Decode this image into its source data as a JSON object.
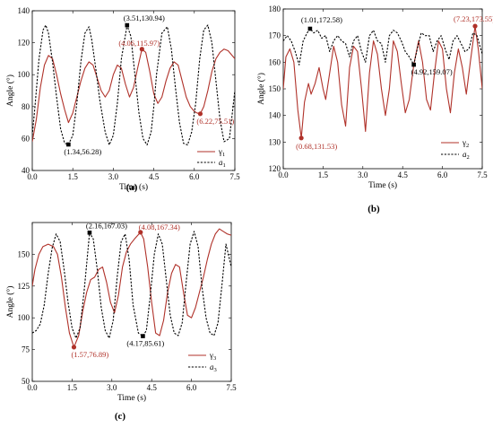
{
  "colors": {
    "gamma": "#b0322a",
    "a": "#000000",
    "annot_gamma": "#b0322a",
    "annot_a": "#000000"
  },
  "chart_data": [
    {
      "type": "line",
      "caption": "(a)",
      "xlabel": "Time (s)",
      "ylabel": "Angle (°)",
      "xlim": [
        0,
        7.5
      ],
      "ylim": [
        40,
        140
      ],
      "xticks": [
        "0.0",
        "1.5",
        "3.0",
        "4.5",
        "6.0",
        "7.5"
      ],
      "yticks": [
        "40",
        "60",
        "80",
        "100",
        "120",
        "140"
      ],
      "legend_position": "bottom-right",
      "series": [
        {
          "name": "γ1",
          "name_main": "γ",
          "name_sub": "1",
          "italic": false,
          "style": "solid",
          "x": [
            0,
            0.15,
            0.3,
            0.45,
            0.6,
            0.75,
            0.9,
            1.05,
            1.2,
            1.34,
            1.5,
            1.65,
            1.8,
            1.95,
            2.1,
            2.25,
            2.4,
            2.55,
            2.7,
            2.85,
            3.0,
            3.15,
            3.3,
            3.45,
            3.6,
            3.75,
            3.9,
            4.06,
            4.2,
            4.35,
            4.5,
            4.65,
            4.8,
            4.95,
            5.1,
            5.25,
            5.4,
            5.55,
            5.7,
            5.85,
            6.0,
            6.1,
            6.22,
            6.35,
            6.5,
            6.65,
            6.8,
            6.95,
            7.1,
            7.25,
            7.4,
            7.5
          ],
          "y": [
            58,
            72,
            92,
            106,
            112,
            110,
            100,
            88,
            78,
            70,
            76,
            86,
            96,
            104,
            108,
            106,
            98,
            90,
            86,
            90,
            100,
            106,
            104,
            94,
            86,
            92,
            104,
            115.97,
            114,
            102,
            88,
            82,
            86,
            96,
            104,
            108,
            106,
            96,
            86,
            80,
            77,
            76,
            75.51,
            80,
            90,
            102,
            110,
            114,
            116,
            115,
            112,
            110
          ]
        },
        {
          "name": "a1",
          "name_main": "a",
          "name_sub": "1",
          "italic": true,
          "style": "dashed",
          "x": [
            0,
            0.1,
            0.25,
            0.4,
            0.5,
            0.6,
            0.75,
            0.9,
            1.05,
            1.2,
            1.34,
            1.5,
            1.65,
            1.8,
            1.95,
            2.1,
            2.2,
            2.35,
            2.5,
            2.7,
            2.85,
            3.0,
            3.15,
            3.3,
            3.51,
            3.65,
            3.8,
            3.95,
            4.1,
            4.25,
            4.4,
            4.5,
            4.6,
            4.8,
            5.0,
            5.15,
            5.3,
            5.45,
            5.6,
            5.75,
            5.9,
            6.05,
            6.2,
            6.35,
            6.5,
            6.65,
            6.8,
            6.95,
            7.1,
            7.3,
            7.5
          ],
          "y": [
            62,
            80,
            110,
            128,
            131,
            126,
            108,
            86,
            66,
            57,
            56.28,
            62,
            82,
            108,
            126,
            130,
            122,
            104,
            84,
            64,
            56,
            62,
            82,
            110,
            130.94,
            124,
            100,
            76,
            60,
            56,
            64,
            80,
            100,
            126,
            130,
            116,
            92,
            70,
            57,
            56,
            64,
            82,
            110,
            128,
            131,
            120,
            96,
            72,
            58,
            60,
            90
          ]
        }
      ],
      "annotations": [
        {
          "text": "(3.51,130.94)",
          "x": 3.51,
          "y": 130.94,
          "series": "a1"
        },
        {
          "text": "(4.06,115.97)",
          "x": 4.06,
          "y": 115.97,
          "series": "γ1"
        },
        {
          "text": "(1.34,56.28)",
          "x": 1.34,
          "y": 56.28,
          "series": "a1"
        },
        {
          "text": "(6.22,75.51)",
          "x": 6.22,
          "y": 75.51,
          "series": "γ1"
        }
      ]
    },
    {
      "type": "line",
      "caption": "(b)",
      "xlabel": "Time (s)",
      "ylabel": "Angle (°)",
      "xlim": [
        0,
        7.5
      ],
      "ylim": [
        120,
        180
      ],
      "xticks": [
        "0.0",
        "1.5",
        "3.0",
        "4.5",
        "6.0",
        "7.5"
      ],
      "yticks": [
        "120",
        "130",
        "140",
        "150",
        "160",
        "170",
        "180"
      ],
      "legend_position": "bottom-right",
      "series": [
        {
          "name": "γ2",
          "name_main": "γ",
          "name_sub": "2",
          "italic": false,
          "style": "solid",
          "x": [
            0,
            0.1,
            0.25,
            0.4,
            0.55,
            0.68,
            0.8,
            0.95,
            1.05,
            1.2,
            1.35,
            1.5,
            1.6,
            1.75,
            1.9,
            2.05,
            2.2,
            2.35,
            2.5,
            2.65,
            2.8,
            2.95,
            3.1,
            3.25,
            3.4,
            3.55,
            3.7,
            3.85,
            4.0,
            4.15,
            4.3,
            4.45,
            4.6,
            4.75,
            4.92,
            5.1,
            5.25,
            5.4,
            5.55,
            5.7,
            5.85,
            6.0,
            6.15,
            6.3,
            6.45,
            6.6,
            6.75,
            6.9,
            7.05,
            7.23,
            7.35,
            7.5
          ],
          "y": [
            150,
            162,
            165,
            160,
            142,
            131.53,
            145,
            152,
            148,
            152,
            158,
            150,
            146,
            156,
            166,
            160,
            144,
            136,
            158,
            166,
            164,
            150,
            134,
            156,
            168,
            163,
            150,
            140,
            150,
            168,
            164,
            152,
            141,
            146,
            159.07,
            168,
            160,
            146,
            142,
            156,
            168,
            165,
            150,
            141,
            156,
            165,
            158,
            148,
            160,
            173.55,
            165,
            150
          ]
        },
        {
          "name": "a2",
          "name_main": "a",
          "name_sub": "2",
          "italic": true,
          "style": "dashed",
          "x": [
            0,
            0.15,
            0.3,
            0.45,
            0.6,
            0.75,
            0.9,
            1.01,
            1.15,
            1.3,
            1.45,
            1.6,
            1.75,
            1.9,
            2.05,
            2.2,
            2.35,
            2.5,
            2.65,
            2.8,
            2.95,
            3.1,
            3.25,
            3.4,
            3.55,
            3.7,
            3.85,
            4.0,
            4.15,
            4.3,
            4.45,
            4.6,
            4.75,
            4.92,
            5.05,
            5.2,
            5.35,
            5.5,
            5.65,
            5.8,
            5.95,
            6.1,
            6.25,
            6.4,
            6.55,
            6.7,
            6.85,
            7.0,
            7.15,
            7.3,
            7.5
          ],
          "y": [
            168,
            170,
            168,
            164,
            159,
            168,
            171,
            172.58,
            171,
            172,
            169,
            170,
            164,
            168,
            170,
            168,
            167,
            162,
            168,
            170,
            164,
            160,
            170,
            172,
            168,
            167,
            160,
            170,
            172,
            171,
            168,
            164,
            162,
            159.07,
            165,
            171,
            170,
            170,
            164,
            168,
            170,
            165,
            161,
            168,
            170,
            167,
            164,
            165,
            171,
            170,
            163
          ]
        }
      ],
      "annotations": [
        {
          "text": "(1.01,172.58)",
          "x": 1.01,
          "y": 172.58,
          "series": "a2"
        },
        {
          "text": "(7.23,173.55)",
          "x": 7.23,
          "y": 173.55,
          "series": "γ2"
        },
        {
          "text": "(4.92,159.07)",
          "x": 4.92,
          "y": 159.07,
          "series": "a2"
        },
        {
          "text": "(0.68,131.53)",
          "x": 0.68,
          "y": 131.53,
          "series": "γ2"
        }
      ]
    },
    {
      "type": "line",
      "caption": "(c)",
      "xlabel": "Time (s)",
      "ylabel": "Angle (°)",
      "xlim": [
        0,
        7.5
      ],
      "ylim": [
        50,
        175
      ],
      "xticks": [
        "0.0",
        "1.5",
        "3.0",
        "4.5",
        "6.0",
        "7.5"
      ],
      "yticks": [
        "50",
        "75",
        "100",
        "125",
        "150"
      ],
      "legend_position": "bottom-right",
      "series": [
        {
          "name": "γ3",
          "name_main": "γ",
          "name_sub": "3",
          "italic": false,
          "style": "solid",
          "x": [
            0,
            0.1,
            0.25,
            0.4,
            0.6,
            0.8,
            0.95,
            1.1,
            1.25,
            1.4,
            1.57,
            1.75,
            1.9,
            2.05,
            2.2,
            2.35,
            2.5,
            2.65,
            2.8,
            2.95,
            3.1,
            3.25,
            3.4,
            3.55,
            3.7,
            3.85,
            4.08,
            4.2,
            4.35,
            4.5,
            4.65,
            4.8,
            4.95,
            5.1,
            5.25,
            5.4,
            5.55,
            5.7,
            5.85,
            6.0,
            6.15,
            6.3,
            6.45,
            6.6,
            6.75,
            6.9,
            7.05,
            7.2,
            7.35,
            7.5
          ],
          "y": [
            125,
            138,
            150,
            156,
            158,
            156,
            150,
            132,
            108,
            88,
            76.89,
            86,
            105,
            120,
            130,
            132,
            138,
            140,
            128,
            112,
            104,
            118,
            140,
            152,
            158,
            162,
            167.34,
            162,
            140,
            112,
            88,
            86,
            98,
            120,
            135,
            142,
            140,
            120,
            102,
            100,
            108,
            120,
            132,
            146,
            158,
            166,
            170,
            168,
            166,
            165
          ]
        },
        {
          "name": "a3",
          "name_main": "a",
          "name_sub": "3",
          "italic": true,
          "style": "dashed",
          "x": [
            0,
            0.15,
            0.3,
            0.45,
            0.6,
            0.75,
            0.9,
            1.05,
            1.2,
            1.35,
            1.5,
            1.65,
            1.8,
            1.95,
            2.16,
            2.3,
            2.45,
            2.6,
            2.75,
            2.9,
            3.05,
            3.2,
            3.35,
            3.5,
            3.65,
            3.8,
            4.0,
            4.17,
            4.3,
            4.45,
            4.6,
            4.75,
            4.9,
            5.05,
            5.2,
            5.35,
            5.5,
            5.65,
            5.8,
            5.95,
            6.1,
            6.25,
            6.4,
            6.55,
            6.7,
            6.85,
            7.0,
            7.15,
            7.3,
            7.5
          ],
          "y": [
            88,
            90,
            95,
            110,
            135,
            155,
            166,
            160,
            138,
            112,
            92,
            84,
            92,
            120,
            167.03,
            162,
            138,
            108,
            90,
            84,
            98,
            132,
            160,
            166,
            146,
            110,
            88,
            85.61,
            90,
            118,
            150,
            166,
            158,
            130,
            102,
            88,
            86,
            96,
            128,
            158,
            168,
            156,
            124,
            100,
            88,
            86,
            96,
            126,
            158,
            140
          ]
        }
      ],
      "annotations": [
        {
          "text": "(2.16,167.03)",
          "x": 2.16,
          "y": 167.03,
          "series": "a3"
        },
        {
          "text": "(4.08,167.34)",
          "x": 4.08,
          "y": 167.34,
          "series": "γ3"
        },
        {
          "text": "(1.57,76.89)",
          "x": 1.57,
          "y": 76.89,
          "series": "γ3"
        },
        {
          "text": "(4.17,85.61)",
          "x": 4.17,
          "y": 85.61,
          "series": "a3"
        }
      ]
    }
  ]
}
